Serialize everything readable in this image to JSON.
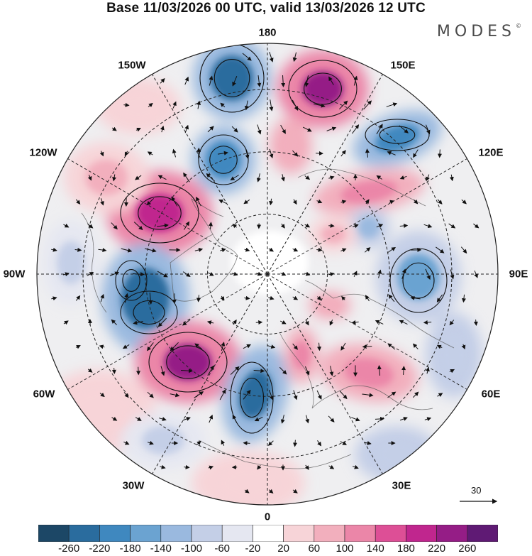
{
  "header": {
    "title": "Base 11/03/2026 00 UTC, valid 13/03/2026 12 UTC",
    "brand": "MODES",
    "brand_mark": "©"
  },
  "map": {
    "longitude_labels": {
      "n180": "180",
      "e150": "150E",
      "e120": "120E",
      "e90": "90E",
      "e60": "60E",
      "e30": "30E",
      "n0": "0",
      "w30": "30W",
      "w60": "60W",
      "w90": "90W",
      "w120": "120W",
      "w150": "150W"
    },
    "reference_vector_label": "30"
  },
  "legend": {
    "tick_labels": [
      "-260",
      "-220",
      "-180",
      "-140",
      "-100",
      "-60",
      "-20",
      "20",
      "60",
      "100",
      "140",
      "180",
      "220",
      "260"
    ],
    "colors": [
      "#1c4766",
      "#2a6c9e",
      "#3f88bf",
      "#6ba3d1",
      "#9ab9df",
      "#c4cfe7",
      "#e5e7f1",
      "#ffffff",
      "#f7d4d8",
      "#f2afbd",
      "#eb86a8",
      "#dd4f96",
      "#c0268e",
      "#951d86",
      "#5f1a74"
    ],
    "neutral_color": "#efeff1"
  }
}
